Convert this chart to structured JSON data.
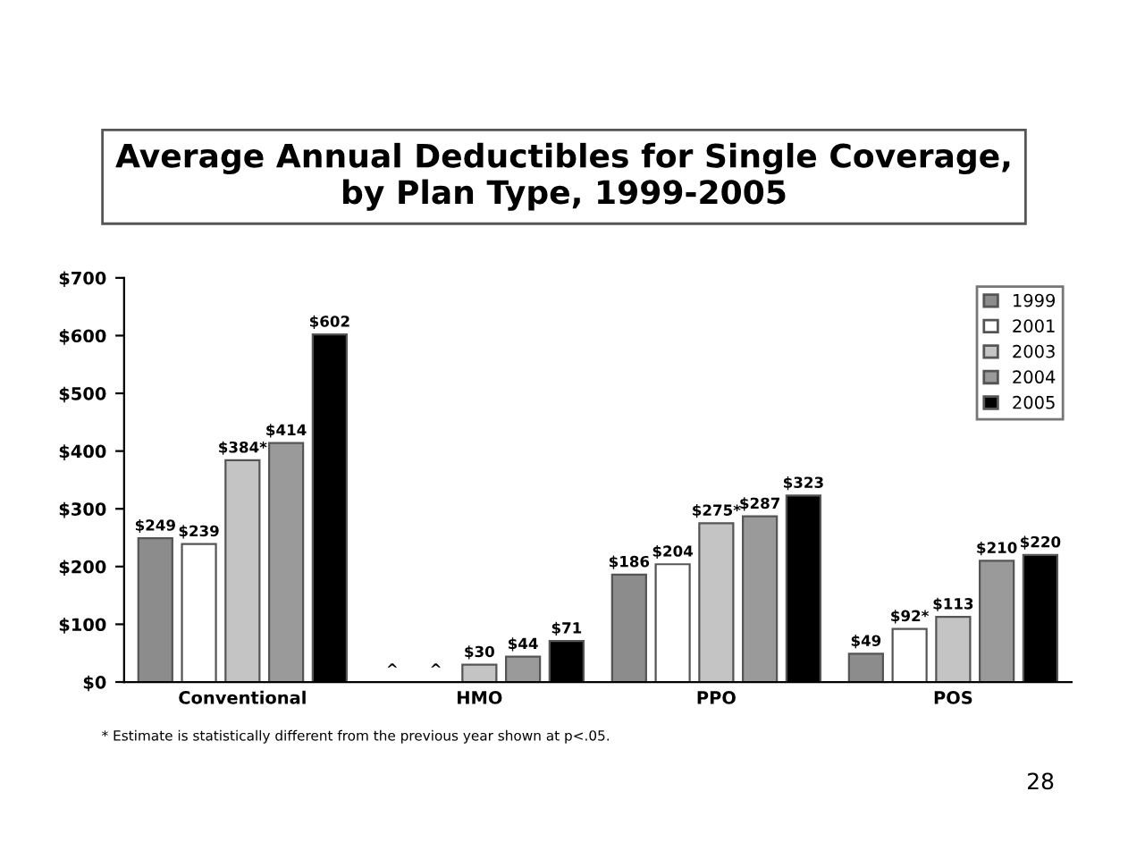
{
  "chart_data": {
    "type": "bar",
    "title": "Average Annual Deductibles for Single Coverage,\nby Plan Type, 1999-2005",
    "categories": [
      "Conventional",
      "HMO",
      "PPO",
      "POS"
    ],
    "series": [
      {
        "name": "1999",
        "color": "#8c8c8c",
        "values": [
          249,
          null,
          186,
          49
        ],
        "value_labels": [
          "$249",
          "^",
          "$186",
          "$49"
        ]
      },
      {
        "name": "2001",
        "color": "#ffffff",
        "values": [
          239,
          null,
          204,
          92
        ],
        "value_labels": [
          "$239",
          "^",
          "$204",
          "$92*"
        ]
      },
      {
        "name": "2003",
        "color": "#c4c4c4",
        "values": [
          384,
          30,
          275,
          113
        ],
        "value_labels": [
          "$384*",
          "$30",
          "$275*",
          "$113"
        ]
      },
      {
        "name": "2004",
        "color": "#9a9a9a",
        "values": [
          414,
          44,
          287,
          210
        ],
        "value_labels": [
          "$414",
          "$44",
          "$287",
          "$210"
        ]
      },
      {
        "name": "2005",
        "color": "#000000",
        "values": [
          602,
          71,
          323,
          220
        ],
        "value_labels": [
          "$602",
          "$71",
          "$323",
          "$220"
        ]
      }
    ],
    "ylim": [
      0,
      700
    ],
    "yticks": [
      {
        "value": 0,
        "label": "$0"
      },
      {
        "value": 100,
        "label": "$100"
      },
      {
        "value": 200,
        "label": "$200"
      },
      {
        "value": 300,
        "label": "$300"
      },
      {
        "value": 400,
        "label": "$400"
      },
      {
        "value": 500,
        "label": "$500"
      },
      {
        "value": 600,
        "label": "$600"
      },
      {
        "value": 700,
        "label": "$700"
      }
    ],
    "legend": "top right",
    "grid": false,
    "annotations": [
      "* Estimate is statistically different from the previous year shown at p<.05.",
      "28"
    ]
  }
}
